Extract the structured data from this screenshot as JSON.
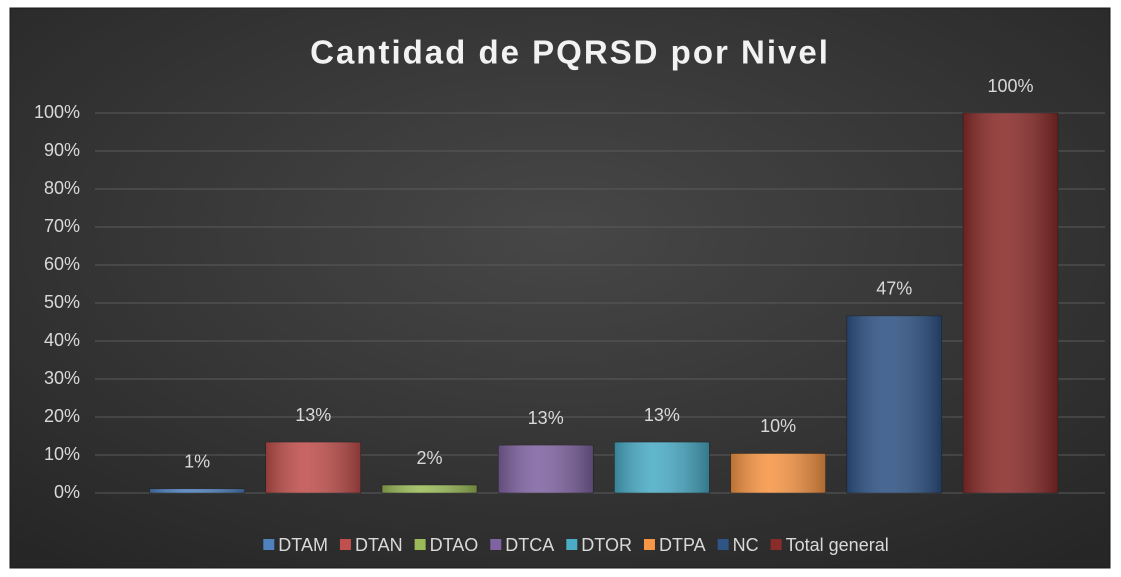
{
  "chart_data": {
    "type": "bar",
    "title": "Cantidad de PQRSD por Nivel",
    "series": [
      {
        "name": "DTAM",
        "color": "#4f81bd",
        "values": [
          1.1
        ],
        "value_labels": [
          "1%"
        ]
      },
      {
        "name": "DTAN",
        "color": "#c0504d",
        "values": [
          13.4
        ],
        "value_labels": [
          "13%"
        ]
      },
      {
        "name": "DTAO",
        "color": "#9bbb59",
        "values": [
          2.1
        ],
        "value_labels": [
          "2%"
        ]
      },
      {
        "name": "DTCA",
        "color": "#8064a2",
        "values": [
          12.6
        ],
        "value_labels": [
          "13%"
        ]
      },
      {
        "name": "DTOR",
        "color": "#4bacc6",
        "values": [
          13.4
        ],
        "value_labels": [
          "13%"
        ]
      },
      {
        "name": "DTPA",
        "color": "#f79646",
        "values": [
          10.4
        ],
        "value_labels": [
          "10%"
        ]
      },
      {
        "name": "NC",
        "color": "#2f5486",
        "values": [
          46.6
        ],
        "value_labels": [
          "47%"
        ]
      },
      {
        "name": "Total general",
        "color": "#8a2c2a",
        "values": [
          100
        ],
        "value_labels": [
          "100%"
        ]
      }
    ],
    "ylim": [
      0,
      100
    ],
    "yticks": [
      {
        "value": 0,
        "label": "0%"
      },
      {
        "value": 10,
        "label": "10%"
      },
      {
        "value": 20,
        "label": "20%"
      },
      {
        "value": 30,
        "label": "30%"
      },
      {
        "value": 40,
        "label": "40%"
      },
      {
        "value": 50,
        "label": "50%"
      },
      {
        "value": 60,
        "label": "60%"
      },
      {
        "value": 70,
        "label": "70%"
      },
      {
        "value": 80,
        "label": "80%"
      },
      {
        "value": 90,
        "label": "90%"
      },
      {
        "value": 100,
        "label": "100%"
      }
    ],
    "grid": true,
    "legend": "bottom"
  }
}
